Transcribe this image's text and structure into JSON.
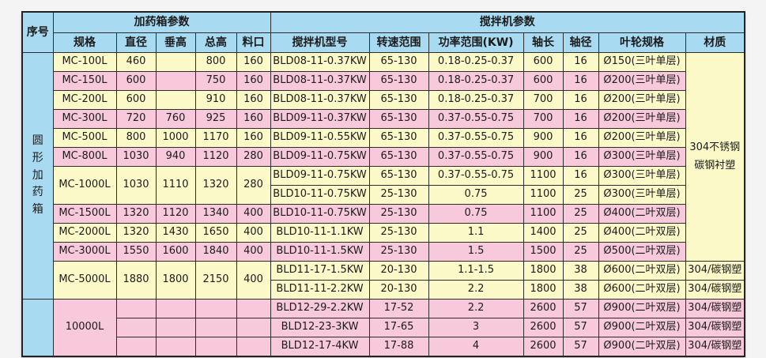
{
  "colors": {
    "header_blue": "#a8daf2",
    "row_yellow": "#fbf9c8",
    "row_pink": "#f7c9da",
    "border": "#2d2d2d",
    "text": "#1b1b1b"
  },
  "table": {
    "header_row1": [
      {
        "t": "序号",
        "rs": 2,
        "name": "header-serial"
      },
      {
        "t": "加药箱参数",
        "cs": 5,
        "name": "header-tank-params"
      },
      {
        "t": "搅拌机参数",
        "cs": 7,
        "name": "header-mixer-params"
      }
    ],
    "header_row2": [
      {
        "t": "规格"
      },
      {
        "t": "直径"
      },
      {
        "t": "垂高"
      },
      {
        "t": "总高"
      },
      {
        "t": "料口"
      },
      {
        "t": "搅拌机型号"
      },
      {
        "t": "转速范围"
      },
      {
        "t": "功率范围(KW)"
      },
      {
        "t": "轴长"
      },
      {
        "t": "轴径"
      },
      {
        "t": "叶轮规格"
      },
      {
        "t": "材质"
      }
    ],
    "rows": [
      {
        "tone": "y",
        "cells": [
          {
            "t": "圆形加药箱",
            "rs": 13,
            "bg": "blue",
            "v": true,
            "name": "serial-group-label"
          },
          {
            "t": "MC-100L"
          },
          {
            "t": "460"
          },
          {
            "t": ""
          },
          {
            "t": "800"
          },
          {
            "t": "160"
          },
          {
            "t": "BLD08-11-0.37KW"
          },
          {
            "t": "65-130"
          },
          {
            "t": "0.18-0.25-0.37"
          },
          {
            "t": "600"
          },
          {
            "t": "16"
          },
          {
            "t": "Ø150(三叶单层)"
          },
          {
            "t": "304不锈钢\n碳钢衬塑",
            "rs": 11,
            "bg": "y",
            "pre": true,
            "name": "material-group-cell"
          }
        ]
      },
      {
        "tone": "p",
        "cells": [
          {
            "t": "MC-150L"
          },
          {
            "t": "600"
          },
          {
            "t": ""
          },
          {
            "t": "750"
          },
          {
            "t": "160"
          },
          {
            "t": "BLD08-11-0.37KW"
          },
          {
            "t": "65-130"
          },
          {
            "t": "0.18-0.25-0.37"
          },
          {
            "t": "600"
          },
          {
            "t": "16"
          },
          {
            "t": "Ø200(三叶单层)"
          }
        ]
      },
      {
        "tone": "y",
        "cells": [
          {
            "t": "MC-200L"
          },
          {
            "t": "600"
          },
          {
            "t": ""
          },
          {
            "t": "910"
          },
          {
            "t": "160"
          },
          {
            "t": "BLD08-11-0.37KW"
          },
          {
            "t": "65-130"
          },
          {
            "t": "0.18-0.25-0.37"
          },
          {
            "t": "700"
          },
          {
            "t": "16"
          },
          {
            "t": "Ø200(三叶单层)"
          }
        ]
      },
      {
        "tone": "p",
        "cells": [
          {
            "t": "MC-300L"
          },
          {
            "t": "720"
          },
          {
            "t": "760"
          },
          {
            "t": "925"
          },
          {
            "t": "160"
          },
          {
            "t": "BLD09-11-0.37KW"
          },
          {
            "t": "65-130"
          },
          {
            "t": "0.37-0.55-0.75"
          },
          {
            "t": "700"
          },
          {
            "t": "16"
          },
          {
            "t": "Ø200(三叶单层)"
          }
        ]
      },
      {
        "tone": "y",
        "cells": [
          {
            "t": "MC-500L"
          },
          {
            "t": "800"
          },
          {
            "t": "1000"
          },
          {
            "t": "1170"
          },
          {
            "t": "160"
          },
          {
            "t": "BLD09-11-0.55KW"
          },
          {
            "t": "65-130"
          },
          {
            "t": "0.37-0.55-0.75"
          },
          {
            "t": "900"
          },
          {
            "t": "16"
          },
          {
            "t": "Ø200(三叶单层)"
          }
        ]
      },
      {
        "tone": "p",
        "cells": [
          {
            "t": "MC-800L"
          },
          {
            "t": "1030"
          },
          {
            "t": "940"
          },
          {
            "t": "1120"
          },
          {
            "t": "280"
          },
          {
            "t": "BLD09-11-0.75KW"
          },
          {
            "t": "65-130"
          },
          {
            "t": "0.37-0.55-0.75"
          },
          {
            "t": "900"
          },
          {
            "t": "16"
          },
          {
            "t": "Ø300(三叶单层)"
          }
        ]
      },
      {
        "tone": "y",
        "cells": [
          {
            "t": "MC-1000L",
            "rs": 2
          },
          {
            "t": "1030",
            "rs": 2
          },
          {
            "t": "1110",
            "rs": 2
          },
          {
            "t": "1320",
            "rs": 2
          },
          {
            "t": "280",
            "rs": 2
          },
          {
            "t": "BLD09-11-0.75KW"
          },
          {
            "t": "65-130"
          },
          {
            "t": "0.37-0.55-0.75"
          },
          {
            "t": "1100"
          },
          {
            "t": "16"
          },
          {
            "t": "Ø300(三叶单层)"
          }
        ]
      },
      {
        "tone": "y",
        "cells": [
          {
            "t": "BLD10-11-0.75KW"
          },
          {
            "t": "25-130"
          },
          {
            "t": "0.75"
          },
          {
            "t": "1100"
          },
          {
            "t": "25"
          },
          {
            "t": "Ø300(三叶单层)"
          }
        ]
      },
      {
        "tone": "p",
        "cells": [
          {
            "t": "MC-1500L"
          },
          {
            "t": "1320"
          },
          {
            "t": "1120"
          },
          {
            "t": "1340"
          },
          {
            "t": "400"
          },
          {
            "t": "BLD10-11-0.75KW"
          },
          {
            "t": "25-130"
          },
          {
            "t": "0.75"
          },
          {
            "t": "1100"
          },
          {
            "t": "25"
          },
          {
            "t": "Ø400(二叶双层)"
          }
        ]
      },
      {
        "tone": "y",
        "cells": [
          {
            "t": "MC-2000L"
          },
          {
            "t": "1320"
          },
          {
            "t": "1430"
          },
          {
            "t": "1650"
          },
          {
            "t": "400"
          },
          {
            "t": "BLD10-11-1.1KW"
          },
          {
            "t": "25-130"
          },
          {
            "t": "1.1"
          },
          {
            "t": "1400"
          },
          {
            "t": "25"
          },
          {
            "t": "Ø400(二叶双层)"
          }
        ]
      },
      {
        "tone": "p",
        "cells": [
          {
            "t": "MC-3000L"
          },
          {
            "t": "1550"
          },
          {
            "t": "1600"
          },
          {
            "t": "1840"
          },
          {
            "t": "400"
          },
          {
            "t": "BLD10-11-1.5KW"
          },
          {
            "t": "25-130"
          },
          {
            "t": "1.5"
          },
          {
            "t": "1500"
          },
          {
            "t": "25"
          },
          {
            "t": "Ø500(二叶双层)"
          }
        ]
      },
      {
        "tone": "y",
        "cells": [
          {
            "t": "MC-5000L",
            "rs": 2
          },
          {
            "t": "1880",
            "rs": 2
          },
          {
            "t": "1800",
            "rs": 2
          },
          {
            "t": "2150",
            "rs": 2
          },
          {
            "t": "400",
            "rs": 2
          },
          {
            "t": "BLD11-17-1.5KW"
          },
          {
            "t": "20-130"
          },
          {
            "t": "1.1-1.5"
          },
          {
            "t": "1800"
          },
          {
            "t": "38"
          },
          {
            "t": "Ø600(二叶双层)"
          },
          {
            "t": "304/碳钢塑"
          }
        ]
      },
      {
        "tone": "y",
        "cells": [
          {
            "t": "BLD11-11-2.2KW"
          },
          {
            "t": "20-130"
          },
          {
            "t": "2.2"
          },
          {
            "t": "1800"
          },
          {
            "t": "38"
          },
          {
            "t": "Ø600(二叶双层)"
          },
          {
            "t": "304/碳钢塑"
          }
        ]
      },
      {
        "tone": "p",
        "cells": [
          {
            "t": "",
            "rs": 3,
            "bg": "blue",
            "name": "serial-empty-cell"
          },
          {
            "t": "10000L",
            "rs": 3
          },
          {
            "t": ""
          },
          {
            "t": ""
          },
          {
            "t": ""
          },
          {
            "t": ""
          },
          {
            "t": "BLD12-29-2.2KW"
          },
          {
            "t": "17-52"
          },
          {
            "t": "2.2"
          },
          {
            "t": "2600"
          },
          {
            "t": "57"
          },
          {
            "t": "Ø900(二叶双层)"
          },
          {
            "t": "304/碳钢塑"
          }
        ]
      },
      {
        "tone": "p",
        "cells": [
          {
            "t": ""
          },
          {
            "t": ""
          },
          {
            "t": ""
          },
          {
            "t": ""
          },
          {
            "t": "BLD12-23-3KW"
          },
          {
            "t": "17-65"
          },
          {
            "t": "3"
          },
          {
            "t": "2600"
          },
          {
            "t": "57"
          },
          {
            "t": "Ø900(二叶双层)"
          },
          {
            "t": "304/碳钢塑"
          }
        ]
      },
      {
        "tone": "p",
        "cells": [
          {
            "t": ""
          },
          {
            "t": ""
          },
          {
            "t": ""
          },
          {
            "t": ""
          },
          {
            "t": "BLD12-17-4KW"
          },
          {
            "t": "17-88"
          },
          {
            "t": "4"
          },
          {
            "t": "2600"
          },
          {
            "t": "57"
          },
          {
            "t": "Ø900(二叶双层)"
          },
          {
            "t": "304/碳钢塑"
          }
        ]
      }
    ]
  }
}
